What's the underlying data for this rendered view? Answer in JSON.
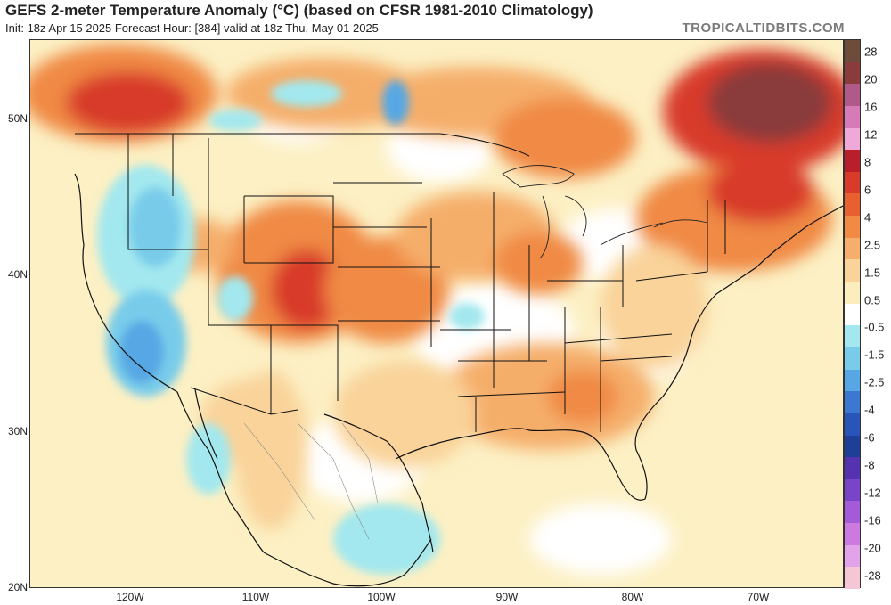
{
  "header": {
    "title": "GEFS 2-meter Temperature Anomaly (°C) (based on CFSR 1981-2010 Climatology)",
    "subtitle": "Init: 18z Apr 15 2025   Forecast Hour: [384]   valid at 18z Thu, May 01 2025",
    "brand": "TROPICALTIDBITS.COM"
  },
  "axes": {
    "lat_labels": [
      "50N",
      "40N",
      "30N",
      "20N"
    ],
    "lon_labels": [
      "120W",
      "110W",
      "100W",
      "90W",
      "80W",
      "70W"
    ]
  },
  "colorbar": {
    "labels": [
      "28",
      "20",
      "16",
      "12",
      "8",
      "6",
      "4",
      "2.5",
      "1.5",
      "0.5",
      "-0.5",
      "-1.5",
      "-2.5",
      "-4",
      "-6",
      "-8",
      "-12",
      "-16",
      "-20",
      "-28"
    ],
    "colors": [
      "#6e4b3b",
      "#8a3b3b",
      "#b05a8a",
      "#d67ab8",
      "#f0a8d8",
      "#b81f2a",
      "#d83b2a",
      "#e8602f",
      "#f08a45",
      "#f5ae6b",
      "#f9d39a",
      "#fcedbf",
      "#ffffff",
      "#a3e8ee",
      "#78ccea",
      "#56a7e4",
      "#3c78d2",
      "#2954b8",
      "#1e3f96",
      "#5533b0",
      "#7a44c8",
      "#a55ad8",
      "#cc7ae0",
      "#e3a3ea",
      "#f5c6d4"
    ]
  },
  "regions": {
    "labels": []
  }
}
